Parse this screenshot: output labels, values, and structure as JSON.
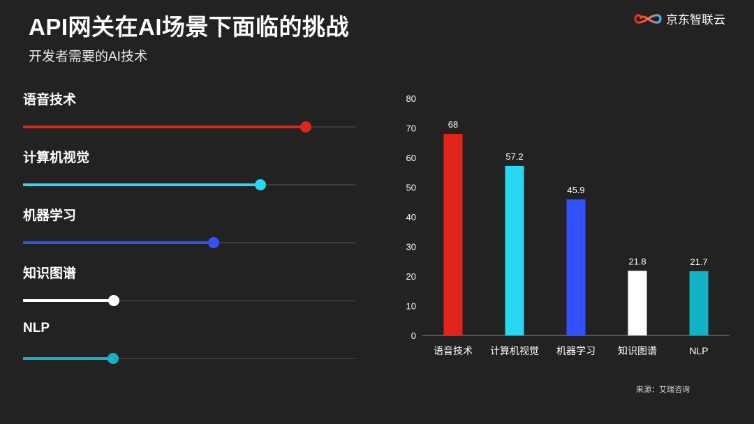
{
  "header": {
    "title": "API网关在AI场景下面临的挑战",
    "subtitle": "开发者需要的AI技术"
  },
  "logo": {
    "text": "京东智联云",
    "icon": "infinity-logo-icon"
  },
  "source": "来源：艾瑞咨询",
  "sliders": [
    {
      "label": "语音技术",
      "value": 68,
      "color": "#e1251b"
    },
    {
      "label": "计算机视觉",
      "value": 57.2,
      "color": "#27d8f2"
    },
    {
      "label": "机器学习",
      "value": 45.9,
      "color": "#3352ff"
    },
    {
      "label": "知识图谱",
      "value": 21.8,
      "color": "#ffffff"
    },
    {
      "label": "NLP",
      "value": 21.7,
      "color": "#10b3c6"
    }
  ],
  "chart_data": {
    "type": "bar",
    "categories": [
      "语音技术",
      "计算机视觉",
      "机器学习",
      "知识图谱",
      "NLP"
    ],
    "values": [
      68,
      57.2,
      45.9,
      21.8,
      21.7
    ],
    "colors": [
      "#e1251b",
      "#27d8f2",
      "#3352ff",
      "#ffffff",
      "#10b3c6"
    ],
    "data_labels": [
      "68",
      "57.2",
      "45.9",
      "21.8",
      "21.7"
    ],
    "ylim": [
      0,
      80
    ],
    "yticks": [
      "0",
      "10",
      "20",
      "30",
      "40",
      "50",
      "60",
      "70",
      "80"
    ],
    "grid": false,
    "legend": "none"
  }
}
